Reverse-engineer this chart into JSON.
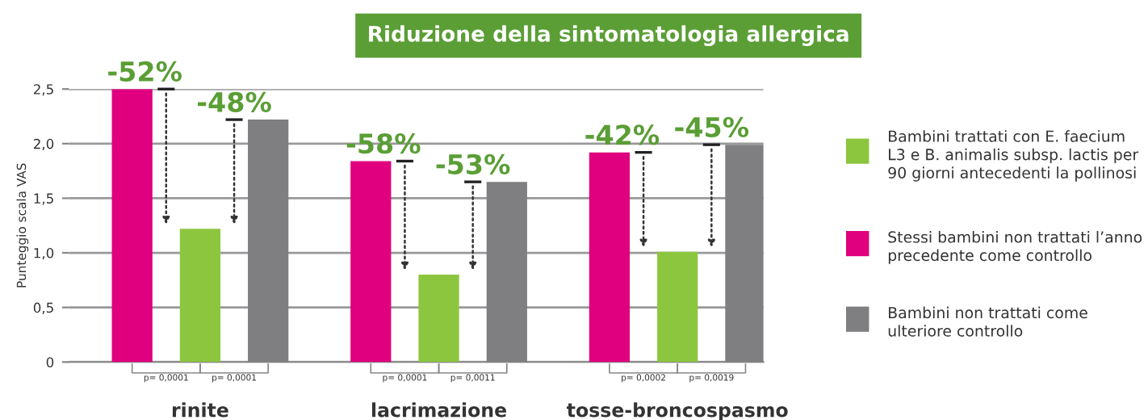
{
  "chart_data": {
    "type": "bar",
    "title": "Riduzione della sintomatologia allergica",
    "ylabel": "Punteggio scala VAS",
    "categories": [
      "rinite",
      "lacrimazione",
      "tosse-broncospasmo"
    ],
    "series": [
      {
        "name": "Stessi bambini non trattati l’anno precedente come controllo",
        "color": "#e0007f",
        "values": [
          2.5,
          1.84,
          1.92
        ]
      },
      {
        "name": "Bambini trattati con E. faecium L3 e B. animalis subsp. lactis per 90 giorni antecedenti la pollinosi",
        "color": "#8cc63f",
        "values": [
          1.22,
          0.8,
          1.01
        ]
      },
      {
        "name": "Bambini non trattati come ulteriore controllo",
        "color": "#7f7f82",
        "values": [
          2.22,
          1.65,
          1.99
        ]
      }
    ],
    "ylim": [
      0,
      2.5
    ],
    "yticks": [
      {
        "value": 0,
        "label": "0"
      },
      {
        "value": 0.5,
        "label": "0,5"
      },
      {
        "value": 1.0,
        "label": "1,0"
      },
      {
        "value": 1.5,
        "label": "1,5"
      },
      {
        "value": 2.0,
        "label": "2,0"
      },
      {
        "value": 2.5,
        "label": "2,5"
      }
    ],
    "grid": "y",
    "legend": "right",
    "annotations": [
      "-52%",
      "-48%",
      "-58%",
      "-53%",
      "-42%",
      "-45%",
      "p= 0,0001",
      "p= 0,0001",
      "p= 0,0001",
      "p= 0,0011",
      "p= 0,0002",
      "p= 0,0019"
    ]
  }
}
